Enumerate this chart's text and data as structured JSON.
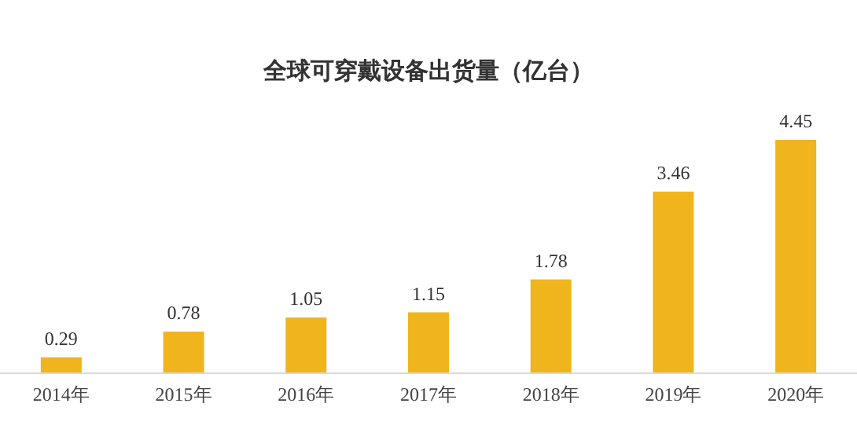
{
  "chart_data": {
    "type": "bar",
    "title": "全球可穿戴设备出货量（亿台）",
    "categories": [
      "2014年",
      "2015年",
      "2016年",
      "2017年",
      "2018年",
      "2019年",
      "2020年"
    ],
    "values": [
      0.29,
      0.78,
      1.05,
      1.15,
      1.78,
      3.46,
      4.45
    ],
    "color": "#f0b41c",
    "data_labels": true
  }
}
